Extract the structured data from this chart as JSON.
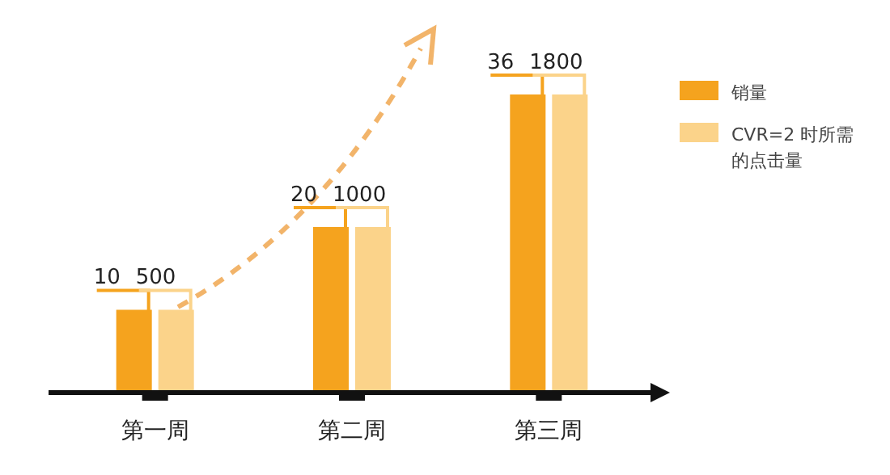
{
  "chart_data": {
    "type": "bar",
    "categories": [
      "第一周",
      "第二周",
      "第三周"
    ],
    "series": [
      {
        "name": "销量",
        "color": "#f5a31e",
        "values": [
          10,
          20,
          36
        ]
      },
      {
        "name": "CVR=2 时所需的点击量",
        "color": "#fbd38a",
        "values": [
          500,
          1000,
          1800
        ],
        "axis": "y2"
      }
    ],
    "tick_labels": "x",
    "data_labels": true,
    "legend": "top right"
  }
}
